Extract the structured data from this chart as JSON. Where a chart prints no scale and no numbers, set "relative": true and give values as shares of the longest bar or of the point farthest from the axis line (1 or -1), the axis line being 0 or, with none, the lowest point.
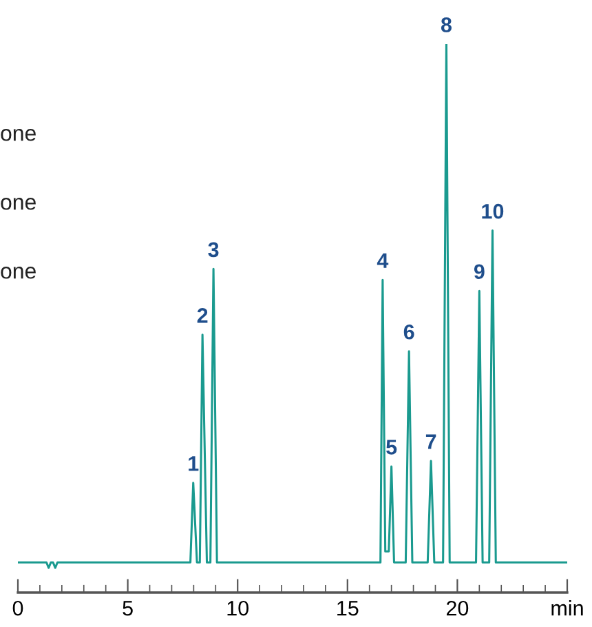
{
  "chart_data": {
    "type": "line",
    "relative": true,
    "x": [
      0,
      1.3,
      1.4,
      1.5,
      1.6,
      1.7,
      1.8,
      7.85,
      7.98,
      8.15,
      8.28,
      8.4,
      8.6,
      8.76,
      8.9,
      9.06,
      16.5,
      16.6,
      16.72,
      16.88,
      17.0,
      17.12,
      17.65,
      17.8,
      17.95,
      18.65,
      18.8,
      18.95,
      19.35,
      19.5,
      19.65,
      20.85,
      21.0,
      21.15,
      21.45,
      21.6,
      21.75,
      25
    ],
    "series": [
      {
        "color": "#1a9a8f",
        "values": [
          0.055,
          0.055,
          0.045,
          0.055,
          0.055,
          0.045,
          0.055,
          0.055,
          0.2,
          0.055,
          0.055,
          0.47,
          0.055,
          0.055,
          0.59,
          0.055,
          0.055,
          0.57,
          0.075,
          0.075,
          0.23,
          0.055,
          0.055,
          0.44,
          0.055,
          0.055,
          0.24,
          0.055,
          0.055,
          1.0,
          0.055,
          0.055,
          0.55,
          0.055,
          0.055,
          0.66,
          0.055,
          0.055
        ]
      }
    ],
    "xlim": [
      0,
      25
    ],
    "xticks": [
      0,
      5,
      10,
      15,
      20,
      {
        "value": 25,
        "label": "min"
      }
    ],
    "annotations": [
      "one",
      "one",
      "one",
      {
        "text": "1",
        "x": 7.98,
        "y": 0.2
      },
      {
        "text": "2",
        "x": 8.4,
        "y": 0.47
      },
      {
        "text": "3",
        "x": 8.9,
        "y": 0.59
      },
      {
        "text": "4",
        "x": 16.6,
        "y": 0.57
      },
      {
        "text": "5",
        "x": 17.0,
        "y": 0.23
      },
      {
        "text": "6",
        "x": 17.8,
        "y": 0.44
      },
      {
        "text": "7",
        "x": 18.8,
        "y": 0.24
      },
      {
        "text": "8",
        "x": 19.5,
        "y": 1.0
      },
      {
        "text": "9",
        "x": 21.0,
        "y": 0.55
      },
      {
        "text": "10",
        "x": 21.6,
        "y": 0.66
      }
    ]
  }
}
